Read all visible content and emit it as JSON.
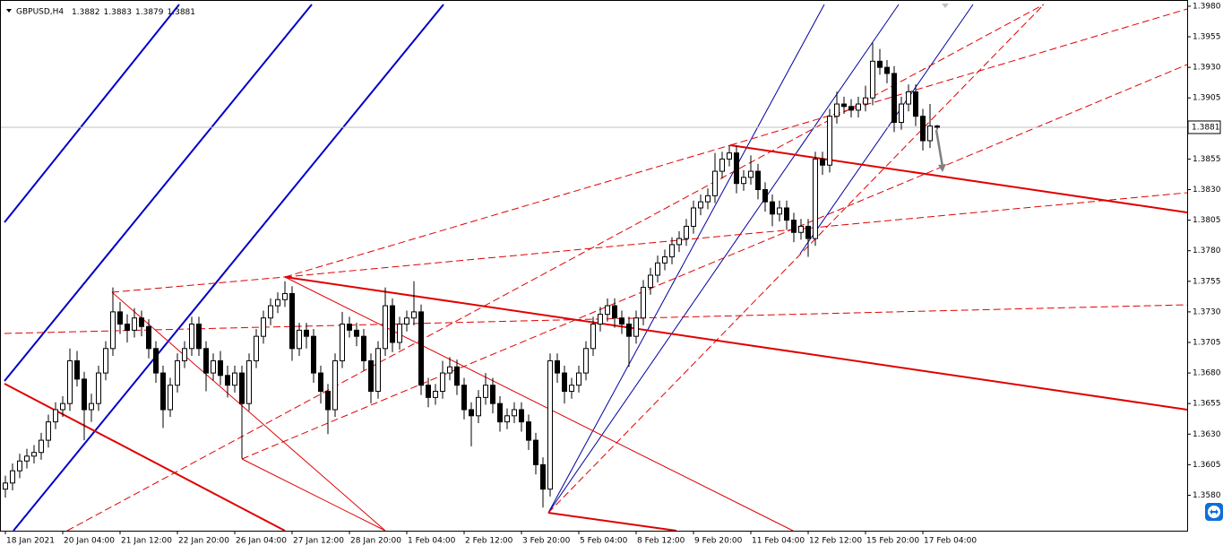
{
  "chart_data": {
    "type": "candlestick",
    "title": "GBPUSD,H4",
    "colors": {
      "up": "#ffffff",
      "down": "#000000",
      "wick": "#000000"
    },
    "candles": [
      [
        1.3585,
        1.3596,
        1.3578,
        1.359
      ],
      [
        1.359,
        1.3606,
        1.3584,
        1.36
      ],
      [
        1.36,
        1.3614,
        1.3594,
        1.3608
      ],
      [
        1.3608,
        1.3618,
        1.3602,
        1.3612
      ],
      [
        1.3612,
        1.3621,
        1.3606,
        1.3615
      ],
      [
        1.3615,
        1.3631,
        1.3609,
        1.3625
      ],
      [
        1.3625,
        1.3646,
        1.3619,
        1.364
      ],
      [
        1.364,
        1.3656,
        1.3634,
        1.365
      ],
      [
        1.365,
        1.3661,
        1.3644,
        1.3655
      ],
      [
        1.3655,
        1.37,
        1.3649,
        1.369
      ],
      [
        1.369,
        1.3698,
        1.3669,
        1.3675
      ],
      [
        1.3675,
        1.3681,
        1.3625,
        1.365
      ],
      [
        1.365,
        1.3663,
        1.364,
        1.3655
      ],
      [
        1.3655,
        1.3686,
        1.3649,
        1.368
      ],
      [
        1.368,
        1.3706,
        1.3674,
        1.37
      ],
      [
        1.37,
        1.375,
        1.3694,
        1.373
      ],
      [
        1.373,
        1.3738,
        1.3712,
        1.372
      ],
      [
        1.372,
        1.3728,
        1.3705,
        1.3715
      ],
      [
        1.3715,
        1.3733,
        1.3709,
        1.3725
      ],
      [
        1.3725,
        1.3731,
        1.371,
        1.3718
      ],
      [
        1.3718,
        1.3724,
        1.3692,
        1.37
      ],
      [
        1.37,
        1.3706,
        1.3672,
        1.368
      ],
      [
        1.368,
        1.3686,
        1.3635,
        1.365
      ],
      [
        1.365,
        1.3676,
        1.3644,
        1.367
      ],
      [
        1.367,
        1.3696,
        1.3664,
        1.369
      ],
      [
        1.369,
        1.3706,
        1.3684,
        1.37
      ],
      [
        1.37,
        1.3726,
        1.3694,
        1.372
      ],
      [
        1.372,
        1.3726,
        1.3694,
        1.37
      ],
      [
        1.37,
        1.3706,
        1.3665,
        1.368
      ],
      [
        1.368,
        1.3696,
        1.3674,
        1.369
      ],
      [
        1.369,
        1.3698,
        1.367,
        1.3678
      ],
      [
        1.3678,
        1.3686,
        1.366,
        1.367
      ],
      [
        1.367,
        1.3686,
        1.3664,
        1.368
      ],
      [
        1.368,
        1.3686,
        1.361,
        1.3655
      ],
      [
        1.3655,
        1.3696,
        1.3649,
        1.369
      ],
      [
        1.369,
        1.3716,
        1.3684,
        1.371
      ],
      [
        1.371,
        1.3731,
        1.3704,
        1.3725
      ],
      [
        1.3725,
        1.3741,
        1.3719,
        1.3735
      ],
      [
        1.3735,
        1.3746,
        1.3729,
        1.374
      ],
      [
        1.374,
        1.3755,
        1.3734,
        1.3745
      ],
      [
        1.3745,
        1.3751,
        1.369,
        1.37
      ],
      [
        1.37,
        1.3721,
        1.3694,
        1.3715
      ],
      [
        1.3715,
        1.3721,
        1.37,
        1.371
      ],
      [
        1.371,
        1.3716,
        1.3672,
        1.368
      ],
      [
        1.368,
        1.3686,
        1.3655,
        1.3665
      ],
      [
        1.3665,
        1.3671,
        1.363,
        1.365
      ],
      [
        1.365,
        1.3696,
        1.3644,
        1.369
      ],
      [
        1.369,
        1.373,
        1.3684,
        1.372
      ],
      [
        1.372,
        1.3726,
        1.3709,
        1.3715
      ],
      [
        1.3715,
        1.3721,
        1.3702,
        1.371
      ],
      [
        1.371,
        1.3716,
        1.3682,
        1.369
      ],
      [
        1.369,
        1.3696,
        1.3655,
        1.3665
      ],
      [
        1.3665,
        1.3706,
        1.3659,
        1.37
      ],
      [
        1.37,
        1.375,
        1.3694,
        1.3735
      ],
      [
        1.3735,
        1.3741,
        1.3697,
        1.3705
      ],
      [
        1.3705,
        1.3726,
        1.3699,
        1.372
      ],
      [
        1.372,
        1.3731,
        1.3714,
        1.3725
      ],
      [
        1.3725,
        1.3755,
        1.3719,
        1.373
      ],
      [
        1.373,
        1.3736,
        1.3662,
        1.367
      ],
      [
        1.367,
        1.3676,
        1.3652,
        1.366
      ],
      [
        1.366,
        1.3671,
        1.3654,
        1.3665
      ],
      [
        1.3665,
        1.369,
        1.3659,
        1.368
      ],
      [
        1.368,
        1.3693,
        1.3674,
        1.3685
      ],
      [
        1.3685,
        1.3691,
        1.3662,
        1.367
      ],
      [
        1.367,
        1.3676,
        1.3642,
        1.365
      ],
      [
        1.365,
        1.3656,
        1.362,
        1.3645
      ],
      [
        1.3645,
        1.3666,
        1.3639,
        1.366
      ],
      [
        1.366,
        1.368,
        1.3654,
        1.367
      ],
      [
        1.367,
        1.3676,
        1.3647,
        1.3655
      ],
      [
        1.3655,
        1.3661,
        1.3632,
        1.364
      ],
      [
        1.364,
        1.3651,
        1.3634,
        1.3645
      ],
      [
        1.3645,
        1.3656,
        1.3639,
        1.365
      ],
      [
        1.365,
        1.3656,
        1.3632,
        1.364
      ],
      [
        1.364,
        1.3646,
        1.3617,
        1.3625
      ],
      [
        1.3625,
        1.3631,
        1.3597,
        1.3605
      ],
      [
        1.3605,
        1.3611,
        1.357,
        1.3585
      ],
      [
        1.3585,
        1.3696,
        1.3579,
        1.369
      ],
      [
        1.369,
        1.3696,
        1.3672,
        1.368
      ],
      [
        1.368,
        1.3686,
        1.3655,
        1.3665
      ],
      [
        1.3665,
        1.3676,
        1.3659,
        1.367
      ],
      [
        1.367,
        1.3686,
        1.3664,
        1.368
      ],
      [
        1.368,
        1.3706,
        1.3674,
        1.37
      ],
      [
        1.37,
        1.3726,
        1.3694,
        1.372
      ],
      [
        1.372,
        1.3734,
        1.3714,
        1.3728
      ],
      [
        1.3728,
        1.3741,
        1.3722,
        1.3735
      ],
      [
        1.3735,
        1.3741,
        1.3717,
        1.3725
      ],
      [
        1.3725,
        1.3731,
        1.3712,
        1.372
      ],
      [
        1.372,
        1.3726,
        1.3685,
        1.371
      ],
      [
        1.371,
        1.3731,
        1.3704,
        1.3725
      ],
      [
        1.3725,
        1.3756,
        1.3719,
        1.375
      ],
      [
        1.375,
        1.3766,
        1.3744,
        1.376
      ],
      [
        1.376,
        1.3776,
        1.3754,
        1.377
      ],
      [
        1.377,
        1.3781,
        1.3764,
        1.3775
      ],
      [
        1.3775,
        1.3791,
        1.3769,
        1.3785
      ],
      [
        1.3785,
        1.3796,
        1.3779,
        1.379
      ],
      [
        1.379,
        1.3806,
        1.3784,
        1.38
      ],
      [
        1.38,
        1.3821,
        1.3794,
        1.3815
      ],
      [
        1.3815,
        1.3826,
        1.3809,
        1.382
      ],
      [
        1.382,
        1.3831,
        1.3814,
        1.3825
      ],
      [
        1.3825,
        1.386,
        1.3819,
        1.3845
      ],
      [
        1.3845,
        1.3861,
        1.3839,
        1.3855
      ],
      [
        1.3855,
        1.3866,
        1.3849,
        1.386
      ],
      [
        1.386,
        1.3866,
        1.3827,
        1.3835
      ],
      [
        1.3835,
        1.3846,
        1.3829,
        1.384
      ],
      [
        1.384,
        1.3858,
        1.3834,
        1.3845
      ],
      [
        1.3845,
        1.3851,
        1.3822,
        1.383
      ],
      [
        1.383,
        1.3836,
        1.3812,
        1.382
      ],
      [
        1.382,
        1.3826,
        1.38,
        1.381
      ],
      [
        1.381,
        1.3821,
        1.3804,
        1.3815
      ],
      [
        1.3815,
        1.3821,
        1.3797,
        1.3805
      ],
      [
        1.3805,
        1.3811,
        1.3787,
        1.3795
      ],
      [
        1.3795,
        1.3806,
        1.3789,
        1.38
      ],
      [
        1.38,
        1.3806,
        1.3775,
        1.379
      ],
      [
        1.379,
        1.3861,
        1.3784,
        1.3855
      ],
      [
        1.3855,
        1.3861,
        1.3842,
        1.385
      ],
      [
        1.385,
        1.3896,
        1.3844,
        1.389
      ],
      [
        1.389,
        1.391,
        1.3884,
        1.39
      ],
      [
        1.39,
        1.3906,
        1.3892,
        1.3898
      ],
      [
        1.3898,
        1.3904,
        1.3889,
        1.3895
      ],
      [
        1.3895,
        1.3906,
        1.3889,
        1.39
      ],
      [
        1.39,
        1.3915,
        1.3894,
        1.3905
      ],
      [
        1.3905,
        1.395,
        1.3899,
        1.3935
      ],
      [
        1.3935,
        1.3945,
        1.3924,
        1.393
      ],
      [
        1.393,
        1.3936,
        1.3917,
        1.3925
      ],
      [
        1.3925,
        1.3931,
        1.3877,
        1.3885
      ],
      [
        1.3885,
        1.3906,
        1.3879,
        1.39
      ],
      [
        1.39,
        1.3916,
        1.3894,
        1.391
      ],
      [
        1.391,
        1.3916,
        1.3882,
        1.389
      ],
      [
        1.389,
        1.3896,
        1.3862,
        1.387
      ],
      [
        1.387,
        1.39,
        1.3864,
        1.3882
      ],
      [
        1.3882,
        1.3883,
        1.3879,
        1.3881
      ]
    ],
    "xlim": [
      -0.75,
      164.875
    ],
    "xticks": [
      {
        "value": 0,
        "label": "18 Jan 2021"
      },
      {
        "value": 8,
        "label": "20 Jan 04:00"
      },
      {
        "value": 16,
        "label": "21 Jan 12:00"
      },
      {
        "value": 24,
        "label": "22 Jan 20:00"
      },
      {
        "value": 32,
        "label": "26 Jan 04:00"
      },
      {
        "value": 40,
        "label": "27 Jan 12:00"
      },
      {
        "value": 48,
        "label": "28 Jan 20:00"
      },
      {
        "value": 56,
        "label": "1 Feb 04:00"
      },
      {
        "value": 64,
        "label": "2 Feb 12:00"
      },
      {
        "value": 72,
        "label": "3 Feb 20:00"
      },
      {
        "value": 80,
        "label": "5 Feb 04:00"
      },
      {
        "value": 88,
        "label": "8 Feb 12:00"
      },
      {
        "value": 96,
        "label": "9 Feb 20:00"
      },
      {
        "value": 104,
        "label": "11 Feb 04:00"
      },
      {
        "value": 112,
        "label": "12 Feb 12:00"
      },
      {
        "value": 120,
        "label": "15 Feb 20:00"
      },
      {
        "value": 128,
        "label": "17 Feb 04:00"
      }
    ],
    "ylim": [
      1.3551,
      1.39851
    ],
    "yticks": [
      {
        "value": 1.398,
        "label": "1.3980"
      },
      1.3955,
      {
        "value": 1.393,
        "label": "1.3930"
      },
      1.3905,
      1.3855,
      {
        "value": 1.383,
        "label": "1.3830"
      },
      1.3805,
      {
        "value": 1.378,
        "label": "1.3780"
      },
      1.3755,
      {
        "value": 1.373,
        "label": "1.3730"
      },
      1.3705,
      {
        "value": 1.368,
        "label": "1.3680"
      },
      1.3655,
      {
        "value": 1.363,
        "label": "1.3630"
      },
      1.3605,
      {
        "value": 1.358,
        "label": "1.3580"
      }
    ]
  }
}
